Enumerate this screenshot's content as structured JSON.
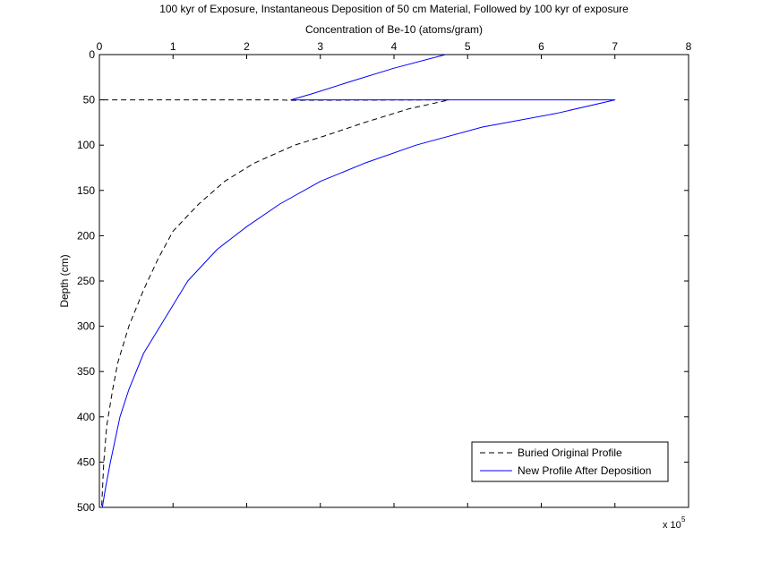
{
  "chart_data": {
    "type": "line",
    "title": "100 kyr of Exposure, Instantaneous Deposition of 50 cm Material, Followed by 100 kyr of exposure",
    "xlabel": "Concentration of Be-10 (atoms/gram)",
    "ylabel": "Depth (cm)",
    "x_axis_position": "top",
    "y_axis_reversed": true,
    "xlim": [
      0,
      8
    ],
    "ylim": [
      0,
      500
    ],
    "x_ticks": [
      "0",
      "1",
      "2",
      "3",
      "4",
      "5",
      "6",
      "7",
      "8"
    ],
    "y_ticks": [
      "0",
      "50",
      "100",
      "150",
      "200",
      "250",
      "300",
      "350",
      "400",
      "450",
      "500"
    ],
    "x_exponent_base": "x 10",
    "x_exponent_power": "5",
    "grid": false,
    "legend_position": "bottom-right",
    "series": [
      {
        "name": "Buried Original Profile",
        "color": "#000000",
        "line_style": "dashed",
        "points": [
          [
            0.05,
            50
          ],
          [
            2.4,
            50
          ],
          [
            2.6,
            50.5
          ],
          [
            4.75,
            50
          ],
          [
            4.2,
            60
          ],
          [
            3.6,
            75
          ],
          [
            3.05,
            90
          ],
          [
            2.65,
            100
          ],
          [
            2.1,
            120
          ],
          [
            1.7,
            140
          ],
          [
            1.35,
            165
          ],
          [
            1.0,
            195
          ],
          [
            0.8,
            225
          ],
          [
            0.6,
            260
          ],
          [
            0.4,
            300
          ],
          [
            0.25,
            340
          ],
          [
            0.18,
            370
          ],
          [
            0.1,
            410
          ],
          [
            0.06,
            450
          ],
          [
            0.03,
            500
          ]
        ]
      },
      {
        "name": "New Profile After Deposition",
        "color": "#0000ff",
        "line_style": "solid",
        "points": [
          [
            4.7,
            0
          ],
          [
            4.0,
            15
          ],
          [
            3.4,
            30
          ],
          [
            2.9,
            43
          ],
          [
            2.6,
            50
          ],
          [
            4.8,
            50
          ],
          [
            7.0,
            50
          ],
          [
            6.2,
            65
          ],
          [
            5.2,
            80
          ],
          [
            4.3,
            100
          ],
          [
            3.6,
            120
          ],
          [
            3.0,
            140
          ],
          [
            2.45,
            165
          ],
          [
            2.0,
            190
          ],
          [
            1.6,
            215
          ],
          [
            1.2,
            250
          ],
          [
            0.9,
            290
          ],
          [
            0.6,
            330
          ],
          [
            0.4,
            370
          ],
          [
            0.28,
            400
          ],
          [
            0.15,
            450
          ],
          [
            0.08,
            480
          ],
          [
            0.04,
            500
          ]
        ]
      }
    ]
  }
}
